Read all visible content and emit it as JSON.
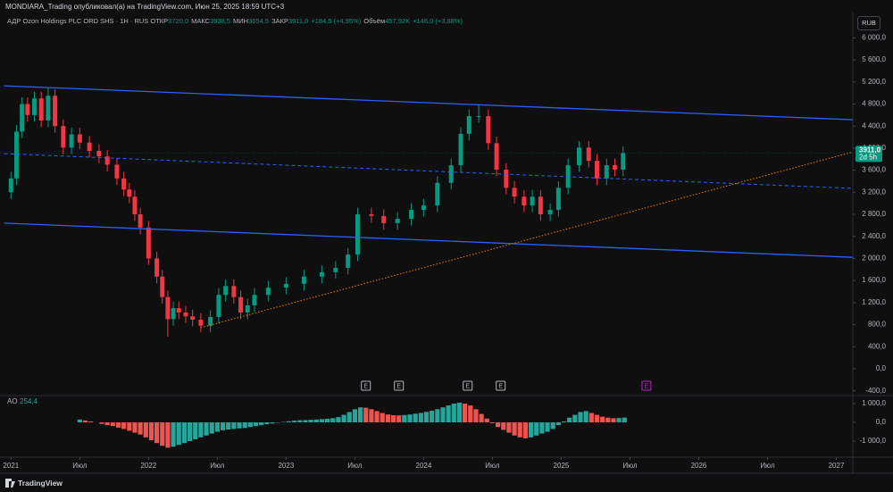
{
  "header": {
    "publisher": "MONDIARA_Trading опубликовал(а) на TradingView.com, Июн 25, 2025 18:59 UTC+3",
    "currency_button": "RUB"
  },
  "footer": {
    "brand": "TradingView"
  },
  "chart_data": [
    {
      "type": "candlestick",
      "title": "АДР Ozon Holdings PLC ORD SHS · 1H · RUS",
      "legend": [
        {
          "label": "ОТКР",
          "value": "3720,0"
        },
        {
          "label": "МАКС",
          "value": "3938,5"
        },
        {
          "label": "МИН",
          "value": "3654,5"
        },
        {
          "label": "ЗАКР",
          "value": "3911,0"
        },
        {
          "label": null,
          "value": "+184,5 (+4,95%)"
        },
        {
          "label": "Объём",
          "value": "457,92K"
        },
        {
          "label": null,
          "value": "+146,0 (+3,88%)"
        }
      ],
      "up_color": "#089981",
      "down_color": "#f23645",
      "x": [
        2021.0,
        2021.04,
        2021.08,
        2021.12,
        2021.17,
        2021.22,
        2021.27,
        2021.32,
        2021.38,
        2021.44,
        2021.5,
        2021.57,
        2021.64,
        2021.7,
        2021.77,
        2021.82,
        2021.86,
        2021.9,
        2021.94,
        2022.0,
        2022.06,
        2022.1,
        2022.14,
        2022.18,
        2022.22,
        2022.27,
        2022.32,
        2022.38,
        2022.45,
        2022.51,
        2022.56,
        2022.62,
        2022.67,
        2022.72,
        2022.77,
        2022.87,
        2023.0,
        2023.13,
        2023.26,
        2023.36,
        2023.45,
        2023.52,
        2023.62,
        2023.71,
        2023.81,
        2023.91,
        2024.0,
        2024.1,
        2024.2,
        2024.27,
        2024.33,
        2024.4,
        2024.47,
        2024.53,
        2024.6,
        2024.66,
        2024.73,
        2024.79,
        2024.85,
        2024.92,
        2024.98,
        2025.05,
        2025.13,
        2025.2,
        2025.26,
        2025.33,
        2025.39,
        2025.45
      ],
      "open": [
        3200,
        3450,
        4300,
        4800,
        4600,
        4900,
        4500,
        4950,
        4400,
        4010,
        4250,
        4100,
        3950,
        3850,
        3700,
        3450,
        3250,
        3120,
        2800,
        2560,
        2000,
        1670,
        1300,
        900,
        1100,
        1020,
        950,
        890,
        780,
        940,
        1340,
        1500,
        1300,
        1020,
        1150,
        1340,
        1470,
        1540,
        1670,
        1750,
        1830,
        2070,
        2800,
        2770,
        2640,
        2720,
        2880,
        2960,
        3370,
        3690,
        4260,
        4580,
        4580,
        4090,
        3610,
        3280,
        3120,
        2960,
        3120,
        2800,
        2880,
        3280,
        3690,
        4010,
        3770,
        3450,
        3690,
        3610
      ],
      "high": [
        3570,
        4420,
        4920,
        4920,
        5020,
        5020,
        5100,
        5070,
        4520,
        4370,
        4370,
        4220,
        4070,
        3970,
        3820,
        3570,
        3370,
        3240,
        2920,
        2680,
        2120,
        1790,
        1420,
        1220,
        1220,
        1140,
        1070,
        1010,
        1060,
        1460,
        1620,
        1620,
        1420,
        1270,
        1460,
        1590,
        1660,
        1790,
        1870,
        1950,
        2190,
        2920,
        2920,
        2890,
        2840,
        3000,
        3080,
        3490,
        3810,
        4380,
        4700,
        4800,
        4700,
        4210,
        3730,
        3400,
        3240,
        3240,
        3240,
        3000,
        3400,
        3810,
        4130,
        4130,
        3890,
        3810,
        3810,
        4031
      ],
      "low": [
        3080,
        3330,
        4180,
        4480,
        4480,
        4380,
        4380,
        4280,
        3890,
        3890,
        3980,
        3830,
        3730,
        3580,
        3330,
        3130,
        3000,
        2680,
        2440,
        1880,
        1550,
        1180,
        580,
        780,
        900,
        830,
        770,
        660,
        660,
        820,
        1220,
        1180,
        900,
        900,
        1030,
        1220,
        1350,
        1420,
        1550,
        1630,
        1710,
        1950,
        2650,
        2520,
        2520,
        2600,
        2760,
        2840,
        3250,
        3570,
        4140,
        4460,
        3970,
        3490,
        3160,
        3000,
        2840,
        2840,
        2680,
        2680,
        2760,
        3160,
        3570,
        3650,
        3330,
        3330,
        3490,
        3490
      ],
      "close": [
        3450,
        4300,
        4800,
        4600,
        4900,
        4500,
        4950,
        4400,
        4010,
        4250,
        4100,
        3950,
        3850,
        3700,
        3450,
        3250,
        3120,
        2800,
        2560,
        2000,
        1670,
        1300,
        900,
        1100,
        1020,
        950,
        890,
        780,
        940,
        1340,
        1500,
        1300,
        1020,
        1150,
        1340,
        1470,
        1540,
        1670,
        1750,
        1830,
        2070,
        2800,
        2770,
        2640,
        2720,
        2880,
        2960,
        3370,
        3690,
        4260,
        4580,
        4580,
        4090,
        3610,
        3280,
        3120,
        2960,
        3120,
        2800,
        2880,
        3280,
        3690,
        4010,
        3770,
        3450,
        3690,
        3610,
        3911
      ],
      "lines": [
        {
          "color": "#2962ff",
          "style": "solid",
          "x": [
            2020.95,
            2027.12
          ],
          "y": [
            5130,
            4515
          ]
        },
        {
          "color": "#2962ff",
          "style": "solid",
          "x": [
            2020.95,
            2027.12
          ],
          "y": [
            2640,
            2020
          ]
        },
        {
          "color": "#2962ff",
          "style": "dashed",
          "x": [
            2020.95,
            2027.12
          ],
          "y": [
            3900,
            3270
          ]
        },
        {
          "color": "#f57c00",
          "style": "dotted",
          "x": [
            2022.38,
            2027.12
          ],
          "y": [
            745,
            3930
          ]
        }
      ],
      "events": [
        {
          "label": "E",
          "x": 2023.58,
          "color": "#b2b5be"
        },
        {
          "label": "E",
          "x": 2023.82,
          "color": "#b2b5be"
        },
        {
          "label": "E",
          "x": 2024.32,
          "color": "#b2b5be"
        },
        {
          "label": "E",
          "x": 2024.56,
          "color": "#b2b5be"
        },
        {
          "label": "E",
          "x": 2025.62,
          "color": "#c026d3"
        }
      ],
      "last_price": {
        "value": 3911,
        "label": "3911,0"
      },
      "countdown": "2d 5h",
      "xlim": [
        2020.92,
        2027.12
      ],
      "xticks": [
        {
          "value": 2021,
          "label": "2021"
        },
        {
          "value": 2021.5,
          "label": "Июл"
        },
        {
          "value": 2022,
          "label": "2022"
        },
        {
          "value": 2022.5,
          "label": "Июл"
        },
        {
          "value": 2023,
          "label": "2023"
        },
        {
          "value": 2023.5,
          "label": "Июл"
        },
        {
          "value": 2024,
          "label": "2024"
        },
        {
          "value": 2024.5,
          "label": "Июл"
        },
        {
          "value": 2025,
          "label": "2025"
        },
        {
          "value": 2025.5,
          "label": "Июл"
        },
        {
          "value": 2026,
          "label": "2026"
        },
        {
          "value": 2026.5,
          "label": "Июл"
        },
        {
          "value": 2027,
          "label": "2027"
        }
      ],
      "ylim": [
        -470,
        6200
      ],
      "yticks": [
        {
          "value": -400,
          "label": "-400,0"
        },
        {
          "value": 0,
          "label": "0,0"
        },
        {
          "value": 400,
          "label": "400,0"
        },
        {
          "value": 800,
          "label": "800,0"
        },
        {
          "value": 1200,
          "label": "1 200,0"
        },
        {
          "value": 1600,
          "label": "1 600,0"
        },
        {
          "value": 2000,
          "label": "2 000,0"
        },
        {
          "value": 2400,
          "label": "2 400,0"
        },
        {
          "value": 2800,
          "label": "2 800,0"
        },
        {
          "value": 3200,
          "label": "3 200,0"
        },
        {
          "value": 3600,
          "label": "3 600,0"
        },
        {
          "value": 4000,
          "label": "4 000,0"
        },
        {
          "value": 4400,
          "label": "4 400,0"
        },
        {
          "value": 4800,
          "label": "4 800,0"
        },
        {
          "value": 5200,
          "label": "5 200,0"
        },
        {
          "value": 5600,
          "label": "5 600,0"
        },
        {
          "value": 6000,
          "label": "6 000,0"
        }
      ],
      "grid": false
    },
    {
      "type": "histogram",
      "title": "AO",
      "last_value_label": "254,4",
      "up_color": "#26a69a",
      "down_color": "#ef5350",
      "x": [
        2021.5,
        2021.54,
        2021.58,
        2021.62,
        2021.66,
        2021.7,
        2021.74,
        2021.78,
        2021.82,
        2021.86,
        2021.9,
        2021.94,
        2021.98,
        2022.02,
        2022.06,
        2022.1,
        2022.14,
        2022.18,
        2022.22,
        2022.26,
        2022.3,
        2022.34,
        2022.38,
        2022.42,
        2022.46,
        2022.5,
        2022.54,
        2022.58,
        2022.62,
        2022.66,
        2022.7,
        2022.74,
        2022.78,
        2022.82,
        2022.86,
        2022.9,
        2022.94,
        2022.98,
        2023.02,
        2023.06,
        2023.1,
        2023.14,
        2023.18,
        2023.22,
        2023.26,
        2023.3,
        2023.34,
        2023.38,
        2023.42,
        2023.46,
        2023.5,
        2023.54,
        2023.58,
        2023.62,
        2023.66,
        2023.7,
        2023.74,
        2023.78,
        2023.82,
        2023.86,
        2023.9,
        2023.94,
        2023.98,
        2024.02,
        2024.06,
        2024.1,
        2024.14,
        2024.18,
        2024.22,
        2024.26,
        2024.3,
        2024.34,
        2024.38,
        2024.42,
        2024.46,
        2024.5,
        2024.54,
        2024.58,
        2024.62,
        2024.66,
        2024.7,
        2024.74,
        2024.78,
        2024.82,
        2024.86,
        2024.9,
        2024.94,
        2024.98,
        2025.02,
        2025.06,
        2025.1,
        2025.14,
        2025.18,
        2025.22,
        2025.26,
        2025.3,
        2025.34,
        2025.38,
        2025.42,
        2025.46
      ],
      "values": [
        150,
        100,
        50,
        0,
        -80,
        -150,
        -200,
        -280,
        -350,
        -450,
        -550,
        -650,
        -800,
        -950,
        -1100,
        -1250,
        -1350,
        -1300,
        -1200,
        -1100,
        -1000,
        -900,
        -800,
        -700,
        -600,
        -500,
        -420,
        -380,
        -350,
        -320,
        -300,
        -250,
        -200,
        -150,
        -100,
        -60,
        -20,
        20,
        60,
        90,
        110,
        120,
        140,
        150,
        170,
        190,
        220,
        280,
        400,
        550,
        700,
        800,
        780,
        700,
        600,
        500,
        420,
        380,
        370,
        390,
        420,
        460,
        500,
        560,
        620,
        700,
        800,
        900,
        1000,
        1050,
        1000,
        900,
        700,
        450,
        200,
        -50,
        -250,
        -400,
        -550,
        -700,
        -800,
        -850,
        -800,
        -700,
        -600,
        -500,
        -350,
        -150,
        50,
        250,
        400,
        550,
        600,
        500,
        400,
        300,
        250,
        220,
        230,
        254.4
      ],
      "ylim": [
        -1760,
        1380
      ],
      "yticks": [
        {
          "value": 1000,
          "label": "1 000,0"
        },
        {
          "value": 0,
          "label": "0,0"
        },
        {
          "value": -1000,
          "label": "-1 000,0"
        }
      ]
    }
  ]
}
